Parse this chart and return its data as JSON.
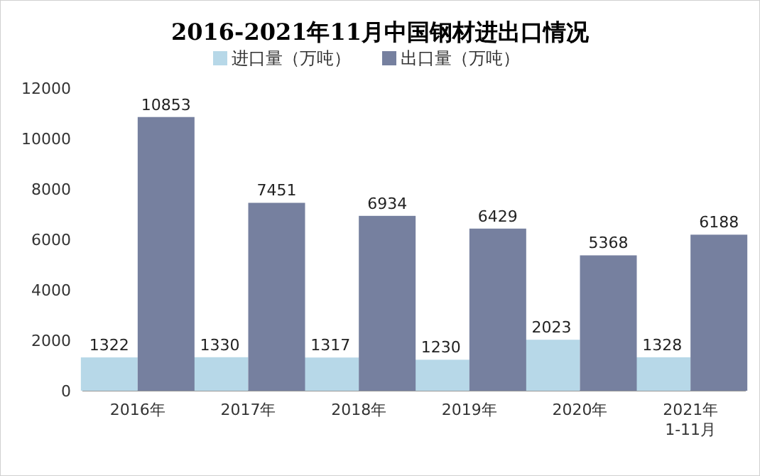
{
  "chart_data": {
    "type": "bar",
    "title": "2016-2021年11月中国钢材进出口情况",
    "categories": [
      "2016年",
      "2017年",
      "2018年",
      "2019年",
      "2020年",
      "2021年1-11月"
    ],
    "series": [
      {
        "name": "进口量（万吨）",
        "color": "#b7d8e8",
        "values": [
          1322,
          1330,
          1317,
          1230,
          2023,
          1328
        ]
      },
      {
        "name": "出口量（万吨）",
        "color": "#76809f",
        "values": [
          10853,
          7451,
          6934,
          6429,
          5368,
          6188
        ]
      }
    ],
    "ylim": [
      0,
      12000
    ],
    "yticks": [
      0,
      2000,
      4000,
      6000,
      8000,
      10000,
      12000
    ],
    "data_labels": true,
    "legend": "top",
    "grid": false
  }
}
